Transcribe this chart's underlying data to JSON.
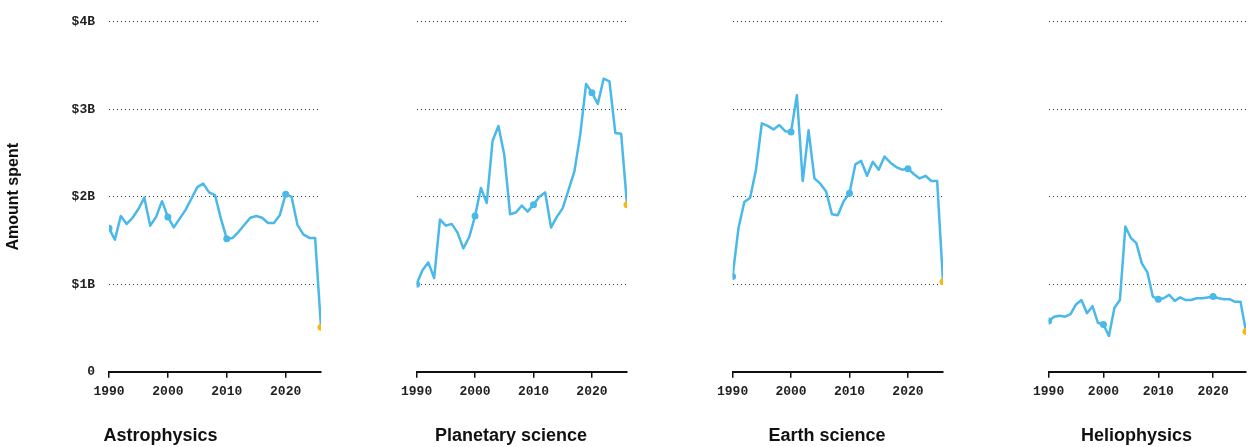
{
  "chart_data": [
    {
      "type": "line",
      "title": "Astrophysics",
      "ylabel": "Amount spent",
      "x": [
        1990,
        1991,
        1992,
        1993,
        1994,
        1995,
        1996,
        1997,
        1998,
        1999,
        2000,
        2001,
        2002,
        2003,
        2004,
        2005,
        2006,
        2007,
        2008,
        2009,
        2010,
        2011,
        2012,
        2013,
        2014,
        2015,
        2016,
        2017,
        2018,
        2019,
        2020,
        2021,
        2022,
        2023,
        2024,
        2025,
        2026
      ],
      "xlim": [
        1990,
        2026
      ],
      "xticks": [
        1990,
        2000,
        2010,
        2020
      ],
      "ylim": [
        0,
        4
      ],
      "yticks": [
        {
          "value": 0,
          "label": "0"
        },
        {
          "value": 1,
          "label": "$1B"
        },
        {
          "value": 2,
          "label": "$2B"
        },
        {
          "value": 3,
          "label": "$3B"
        },
        {
          "value": 4,
          "label": "$4B"
        }
      ],
      "grid": "y",
      "legend": false,
      "series": [
        {
          "color": "#4ab8e8",
          "values": [
            1.64,
            1.51,
            1.78,
            1.69,
            1.76,
            1.86,
            1.99,
            1.67,
            1.77,
            1.95,
            1.77,
            1.65,
            1.75,
            1.85,
            1.98,
            2.11,
            2.15,
            2.05,
            2.02,
            1.75,
            1.52,
            1.53,
            1.6,
            1.68,
            1.76,
            1.78,
            1.76,
            1.7,
            1.7,
            1.79,
            2.03,
            2.0,
            1.68,
            1.57,
            1.53,
            1.53,
            0.51
          ]
        },
        {
          "type": "scatter",
          "color": "#4ab8e8",
          "x": [
            1990,
            2000,
            2010,
            2020
          ],
          "values": [
            1.64,
            1.77,
            1.52,
            2.03
          ]
        },
        {
          "type": "scatter",
          "color": "#f7b718",
          "x": [
            2026
          ],
          "values": [
            0.51
          ]
        }
      ]
    },
    {
      "type": "line",
      "title": "Planetary science",
      "x": [
        1990,
        1991,
        1992,
        1993,
        1994,
        1995,
        1996,
        1997,
        1998,
        1999,
        2000,
        2001,
        2002,
        2003,
        2004,
        2005,
        2006,
        2007,
        2008,
        2009,
        2010,
        2011,
        2012,
        2013,
        2014,
        2015,
        2016,
        2017,
        2018,
        2019,
        2020,
        2021,
        2022,
        2023,
        2024,
        2025,
        2026
      ],
      "xlim": [
        1990,
        2026
      ],
      "xticks": [
        1990,
        2000,
        2010,
        2020
      ],
      "ylim": [
        0,
        4
      ],
      "yticks": [
        0,
        1,
        2,
        3,
        4
      ],
      "grid": "y",
      "legend": false,
      "tick_labels": "x",
      "series": [
        {
          "color": "#4ab8e8",
          "values": [
            1.0,
            1.16,
            1.25,
            1.07,
            1.74,
            1.67,
            1.69,
            1.59,
            1.41,
            1.54,
            1.78,
            2.1,
            1.93,
            2.64,
            2.81,
            2.48,
            1.8,
            1.82,
            1.9,
            1.83,
            1.91,
            2.0,
            2.05,
            1.65,
            1.77,
            1.87,
            2.08,
            2.29,
            2.71,
            3.29,
            3.19,
            3.06,
            3.35,
            3.32,
            2.73,
            2.72,
            1.91
          ]
        },
        {
          "type": "scatter",
          "color": "#4ab8e8",
          "x": [
            1990,
            2000,
            2010,
            2020
          ],
          "values": [
            1.0,
            1.78,
            1.91,
            3.19
          ]
        },
        {
          "type": "scatter",
          "color": "#f7b718",
          "x": [
            2026
          ],
          "values": [
            1.91
          ]
        }
      ]
    },
    {
      "type": "line",
      "title": "Earth science",
      "x": [
        1990,
        1991,
        1992,
        1993,
        1994,
        1995,
        1996,
        1997,
        1998,
        1999,
        2000,
        2001,
        2002,
        2003,
        2004,
        2005,
        2006,
        2007,
        2008,
        2009,
        2010,
        2011,
        2012,
        2013,
        2014,
        2015,
        2016,
        2017,
        2018,
        2019,
        2020,
        2021,
        2022,
        2023,
        2024,
        2025,
        2026
      ],
      "xlim": [
        1990,
        2026
      ],
      "xticks": [
        1990,
        2000,
        2010,
        2020
      ],
      "ylim": [
        0,
        4
      ],
      "yticks": [
        0,
        1,
        2,
        3,
        4
      ],
      "grid": "y",
      "legend": false,
      "tick_labels": "x",
      "series": [
        {
          "color": "#4ab8e8",
          "values": [
            1.09,
            1.64,
            1.94,
            1.99,
            2.31,
            2.84,
            2.81,
            2.77,
            2.82,
            2.75,
            2.74,
            3.16,
            2.18,
            2.76,
            2.21,
            2.15,
            2.06,
            1.8,
            1.79,
            1.95,
            2.04,
            2.37,
            2.41,
            2.24,
            2.4,
            2.31,
            2.46,
            2.39,
            2.34,
            2.31,
            2.32,
            2.26,
            2.21,
            2.24,
            2.18,
            2.18,
            1.03
          ]
        },
        {
          "type": "scatter",
          "color": "#4ab8e8",
          "x": [
            1990,
            2000,
            2010,
            2020
          ],
          "values": [
            1.09,
            2.74,
            2.04,
            2.32
          ]
        },
        {
          "type": "scatter",
          "color": "#f7b718",
          "x": [
            2026
          ],
          "values": [
            1.03
          ]
        }
      ]
    },
    {
      "type": "line",
      "title": "Heliophysics",
      "x": [
        1990,
        1991,
        1992,
        1993,
        1994,
        1995,
        1996,
        1997,
        1998,
        1999,
        2000,
        2001,
        2002,
        2003,
        2004,
        2005,
        2006,
        2007,
        2008,
        2009,
        2010,
        2011,
        2012,
        2013,
        2014,
        2015,
        2016,
        2017,
        2018,
        2019,
        2020,
        2021,
        2022,
        2023,
        2024,
        2025,
        2026
      ],
      "xlim": [
        1990,
        2026
      ],
      "xticks": [
        1990,
        2000,
        2010,
        2020
      ],
      "ylim": [
        0,
        4
      ],
      "yticks": [
        0,
        1,
        2,
        3,
        4
      ],
      "grid": "y",
      "legend": false,
      "tick_labels": "x",
      "series": [
        {
          "color": "#4ab8e8",
          "values": [
            0.58,
            0.63,
            0.64,
            0.63,
            0.66,
            0.77,
            0.82,
            0.67,
            0.75,
            0.56,
            0.54,
            0.41,
            0.73,
            0.82,
            1.66,
            1.53,
            1.47,
            1.24,
            1.14,
            0.86,
            0.83,
            0.84,
            0.88,
            0.81,
            0.85,
            0.82,
            0.82,
            0.84,
            0.84,
            0.85,
            0.86,
            0.84,
            0.83,
            0.83,
            0.8,
            0.8,
            0.46
          ]
        },
        {
          "type": "scatter",
          "color": "#4ab8e8",
          "x": [
            1990,
            2000,
            2010,
            2020
          ],
          "values": [
            0.58,
            0.54,
            0.83,
            0.86
          ]
        },
        {
          "type": "scatter",
          "color": "#f7b718",
          "x": [
            2026
          ],
          "values": [
            0.46
          ]
        }
      ]
    }
  ]
}
